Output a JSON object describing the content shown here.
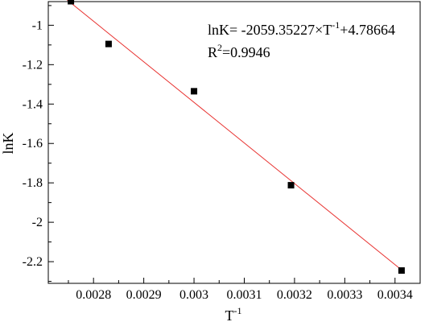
{
  "chart_data": {
    "type": "scatter",
    "xlabel": "T",
    "xlabel_sup": "-1",
    "ylabel": "lnK",
    "xlim": [
      0.00271,
      0.00345
    ],
    "ylim": [
      -2.31,
      -0.88
    ],
    "x_ticks": [
      0.0028,
      0.0029,
      0.003,
      0.0031,
      0.0032,
      0.0033,
      0.0034
    ],
    "x_tick_labels": [
      "0.0028",
      "0.0029",
      "0.003",
      "0.0031",
      "0.0032",
      "0.0033",
      "0.0034"
    ],
    "y_ticks": [
      -1,
      -1.2,
      -1.4,
      -1.6,
      -1.8,
      -2,
      -2.2
    ],
    "y_tick_labels": [
      "-1",
      "-1.2",
      "-1.4",
      "-1.6",
      "-1.8",
      "-2",
      "-2.2"
    ],
    "points": [
      {
        "x": 0.002755,
        "y": -0.878
      },
      {
        "x": 0.00283,
        "y": -1.095
      },
      {
        "x": 0.003,
        "y": -1.335
      },
      {
        "x": 0.003193,
        "y": -1.812
      },
      {
        "x": 0.003413,
        "y": -2.245
      }
    ],
    "fit": {
      "slope": -2059.35227,
      "intercept": 4.78664,
      "x_range": [
        0.002745,
        0.003418
      ],
      "color": "#e8312f"
    },
    "point_color": "#000000",
    "grid": false,
    "legend": "none",
    "annotation": {
      "eq_prefix": "lnK= -2059.35227×T",
      "eq_sup": "-1",
      "eq_suffix": "+4.78664",
      "r2_prefix": "R",
      "r2_sup": "2",
      "r2_suffix": "=0.9946"
    }
  }
}
